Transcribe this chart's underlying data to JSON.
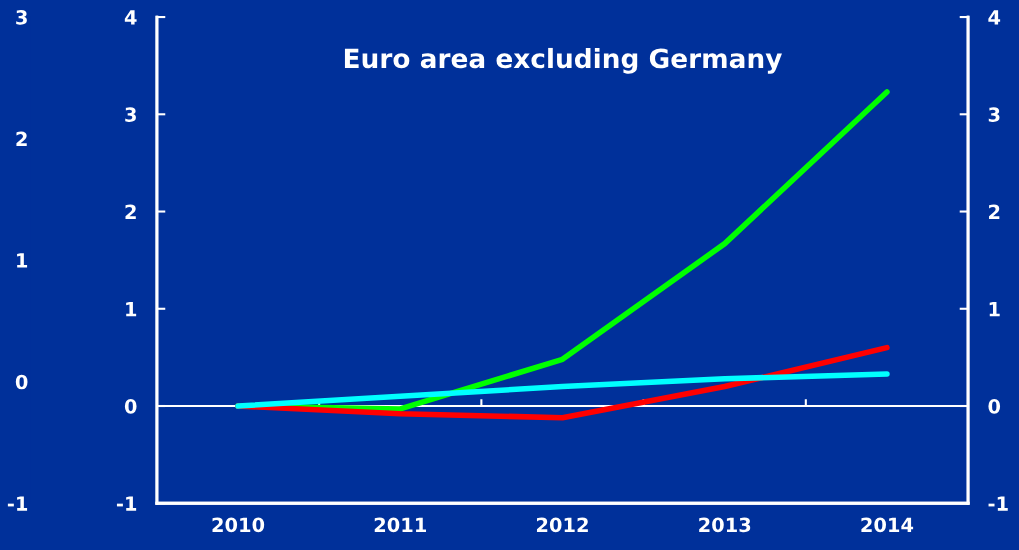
{
  "chart_data": {
    "type": "line",
    "title": "Euro area excluding Germany",
    "categories": [
      "2010",
      "2011",
      "2012",
      "2013",
      "2014"
    ],
    "series": [
      {
        "color": "#00ff00",
        "values": [
          0,
          -0.03,
          0.48,
          1.67,
          3.23
        ]
      },
      {
        "color": "#ff0000",
        "values": [
          0,
          -0.08,
          -0.12,
          0.2,
          0.6
        ]
      },
      {
        "color": "#00ffff",
        "values": [
          0,
          0.1,
          0.2,
          0.28,
          0.33
        ]
      }
    ],
    "ylim": [
      -1,
      4
    ],
    "yticks": [
      -1,
      0,
      1,
      2,
      3,
      4
    ],
    "y2lim": [
      -1,
      4
    ],
    "y2ticks": [
      -1,
      0,
      1,
      2,
      3,
      4
    ],
    "y3lim": [
      -1,
      3
    ],
    "y3ticks": [
      -1,
      0,
      1,
      2,
      3
    ],
    "ref_lines": [
      {
        "axis": "y",
        "value": 0,
        "color": "#ffffff"
      }
    ],
    "grid": false,
    "legend": false,
    "marker": "none",
    "line_style": "solid"
  }
}
